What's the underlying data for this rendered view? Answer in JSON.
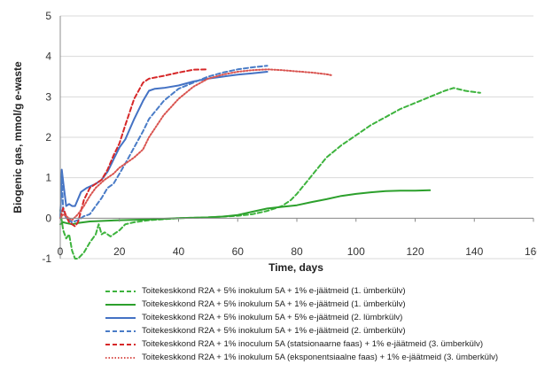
{
  "chart_data": {
    "type": "line",
    "xlabel": "Time, days",
    "ylabel": "Biogenic gas, mmol/g e-waste",
    "xlim": [
      0,
      160
    ],
    "ylim": [
      -1,
      5
    ],
    "x_ticks": [
      "0",
      "20",
      "40",
      "60",
      "80",
      "100",
      "120",
      "140",
      "160"
    ],
    "y_ticks": [
      "-1",
      "0",
      "1",
      "2",
      "3",
      "4",
      "5"
    ],
    "grid": "horizontal",
    "legend_position": "bottom",
    "series": [
      {
        "name": "Toitekeskkond R2A + 5% inokulum 5A + 1% e-jäätmeid (1. ümberkülv)",
        "color": "#3db33d",
        "dash": "dashed",
        "x": [
          0,
          1,
          2,
          3,
          4,
          5,
          6,
          8,
          10,
          12,
          13,
          14,
          15,
          17,
          20,
          22,
          25,
          30,
          40,
          50,
          60,
          65,
          70,
          75,
          78,
          80,
          85,
          90,
          95,
          100,
          105,
          110,
          115,
          120,
          125,
          130,
          133,
          137,
          142
        ],
        "y": [
          0.2,
          -0.3,
          -0.5,
          -0.4,
          -0.8,
          -1.0,
          -1.0,
          -0.85,
          -0.6,
          -0.4,
          -0.15,
          -0.4,
          -0.35,
          -0.45,
          -0.3,
          -0.15,
          -0.1,
          -0.05,
          0.0,
          0.02,
          0.06,
          0.1,
          0.18,
          0.3,
          0.45,
          0.6,
          1.05,
          1.5,
          1.8,
          2.05,
          2.3,
          2.5,
          2.7,
          2.85,
          3.0,
          3.15,
          3.22,
          3.15,
          3.1
        ]
      },
      {
        "name": "Toitekeskkond R2A + 5% inokulum 5A + 1% e-jäätmeid (1. ümberkülv)",
        "color": "#2ca02c",
        "dash": "solid",
        "x": [
          0,
          1,
          2,
          4,
          6,
          10,
          20,
          30,
          40,
          50,
          55,
          60,
          65,
          70,
          75,
          80,
          85,
          90,
          95,
          100,
          105,
          110,
          115,
          120,
          125
        ],
        "y": [
          -0.15,
          -0.1,
          -0.12,
          -0.15,
          -0.12,
          -0.08,
          -0.05,
          -0.03,
          0.0,
          0.02,
          0.04,
          0.08,
          0.16,
          0.24,
          0.28,
          0.32,
          0.4,
          0.47,
          0.55,
          0.6,
          0.64,
          0.67,
          0.68,
          0.68,
          0.69
        ]
      },
      {
        "name": "Toitekeskkond  R2A + 5% inokulum 5A + 5% e-jäätmeid (2. lümbrkülv)",
        "color": "#4472c4",
        "dash": "solid",
        "x": [
          0,
          0.5,
          1,
          2,
          3,
          4,
          5,
          7,
          9,
          12,
          14,
          16,
          18,
          20,
          22,
          25,
          28,
          30,
          32,
          35,
          40,
          45,
          50,
          55,
          60,
          65,
          70
        ],
        "y": [
          0,
          1.2,
          0.9,
          0.3,
          0.35,
          0.3,
          0.3,
          0.65,
          0.75,
          0.85,
          0.95,
          1.15,
          1.45,
          1.75,
          1.95,
          2.45,
          2.9,
          3.15,
          3.2,
          3.22,
          3.28,
          3.38,
          3.45,
          3.5,
          3.55,
          3.58,
          3.62
        ]
      },
      {
        "name": "Toitekeskkond R2A + 5% inokulum 5A + 1% e-jäätmeid (2. ümberkülv)",
        "color": "#4a7cc7",
        "dash": "dashed",
        "x": [
          0,
          0.5,
          1,
          2,
          4,
          6,
          8,
          10,
          12,
          14,
          16,
          18,
          20,
          22,
          25,
          28,
          30,
          35,
          40,
          45,
          50,
          55,
          60,
          65,
          70
        ],
        "y": [
          0,
          1.1,
          0.2,
          0.0,
          -0.1,
          -0.05,
          0.05,
          0.1,
          0.3,
          0.5,
          0.75,
          0.85,
          1.1,
          1.35,
          1.75,
          2.15,
          2.45,
          2.9,
          3.2,
          3.35,
          3.5,
          3.6,
          3.68,
          3.73,
          3.77
        ]
      },
      {
        "name": "Toitekeskkond R2A + 1% inoculum 5A (statsionaarne faas) + 1% e-jäätmeid (3. ümberkülv)",
        "color": "#d62728",
        "dash": "dashed",
        "x": [
          0,
          1,
          2,
          3,
          4,
          5,
          6,
          8,
          10,
          12,
          14,
          16,
          18,
          20,
          22,
          25,
          28,
          30,
          35,
          40,
          45,
          50
        ],
        "y": [
          0,
          0.25,
          0.05,
          -0.1,
          -0.15,
          -0.2,
          -0.1,
          0.45,
          0.75,
          0.85,
          0.95,
          1.2,
          1.55,
          1.85,
          2.3,
          2.95,
          3.35,
          3.45,
          3.52,
          3.6,
          3.67,
          3.68
        ]
      },
      {
        "name": "Toitekeskkond R2A + 1% inokulum 5A (eksponentsiaalne faas) + 1% e-jäätmeid (3. ümberkülv)",
        "color": "#d9534f",
        "dash": "dotted",
        "x": [
          0,
          1,
          2,
          4,
          6,
          8,
          10,
          12,
          15,
          18,
          20,
          22,
          25,
          28,
          30,
          35,
          40,
          45,
          50,
          55,
          60,
          65,
          70,
          75,
          80,
          85,
          90,
          92
        ],
        "y": [
          0,
          0.1,
          0.05,
          -0.05,
          0.1,
          0.3,
          0.55,
          0.75,
          0.95,
          1.1,
          1.25,
          1.35,
          1.5,
          1.7,
          2.0,
          2.55,
          2.95,
          3.25,
          3.45,
          3.55,
          3.62,
          3.66,
          3.68,
          3.66,
          3.63,
          3.6,
          3.56,
          3.53
        ]
      }
    ]
  }
}
